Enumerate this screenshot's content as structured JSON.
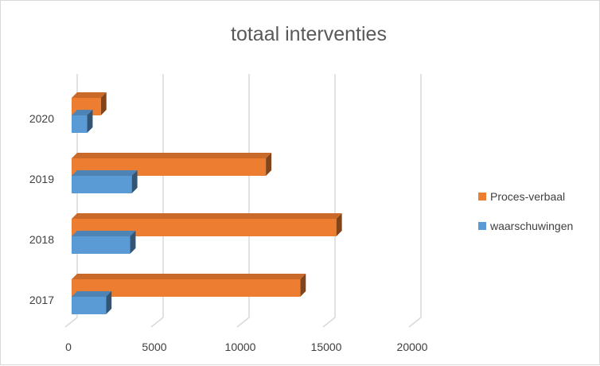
{
  "chart_data": {
    "type": "bar",
    "orientation": "horizontal",
    "style": "3d",
    "title": "totaal interventies",
    "categories": [
      "2017",
      "2018",
      "2019",
      "2020"
    ],
    "series": [
      {
        "name": "Proces-verbaal",
        "color": "#ED7D31",
        "values": [
          13300,
          15400,
          11300,
          1700
        ]
      },
      {
        "name": "waarschuwingen",
        "color": "#5B9BD5",
        "values": [
          2000,
          3400,
          3500,
          900
        ]
      }
    ],
    "xlim": [
      0,
      20000
    ],
    "xticks": [
      "0",
      "5000",
      "10000",
      "15000",
      "20000"
    ],
    "grid": true,
    "legend_position": "right"
  }
}
